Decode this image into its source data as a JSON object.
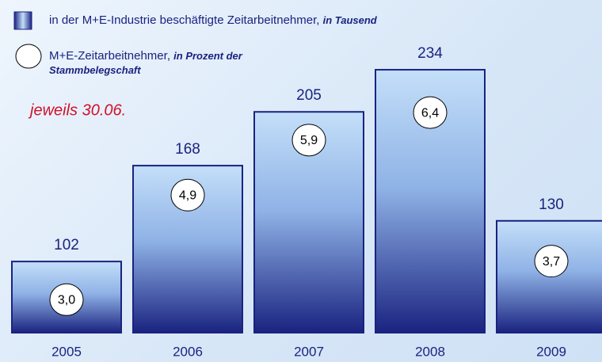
{
  "chart_data": {
    "type": "bar",
    "categories": [
      "2005",
      "2006",
      "2007",
      "2008",
      "2009"
    ],
    "series": [
      {
        "name": "in der M+E-Industrie beschäftigte Zeitarbeitnehmer,",
        "unit": "in Tausend",
        "color": "#1a2380",
        "values": [
          102,
          168,
          205,
          234,
          130
        ]
      },
      {
        "name": "M+E-Zeitarbeitnehmer,",
        "unit": "in Prozent der Stammbelegschaft",
        "axis": "y2",
        "color": "#ffffff",
        "values": [
          3.0,
          4.9,
          5.9,
          6.4,
          3.7
        ],
        "value_labels": [
          "3,0",
          "4,9",
          "5,9",
          "6,4",
          "3,7"
        ]
      }
    ],
    "annotation": "jeweils 30.06.",
    "ylim": [
      53,
      250
    ],
    "y2lim": [
      2.4,
      7.6
    ]
  }
}
